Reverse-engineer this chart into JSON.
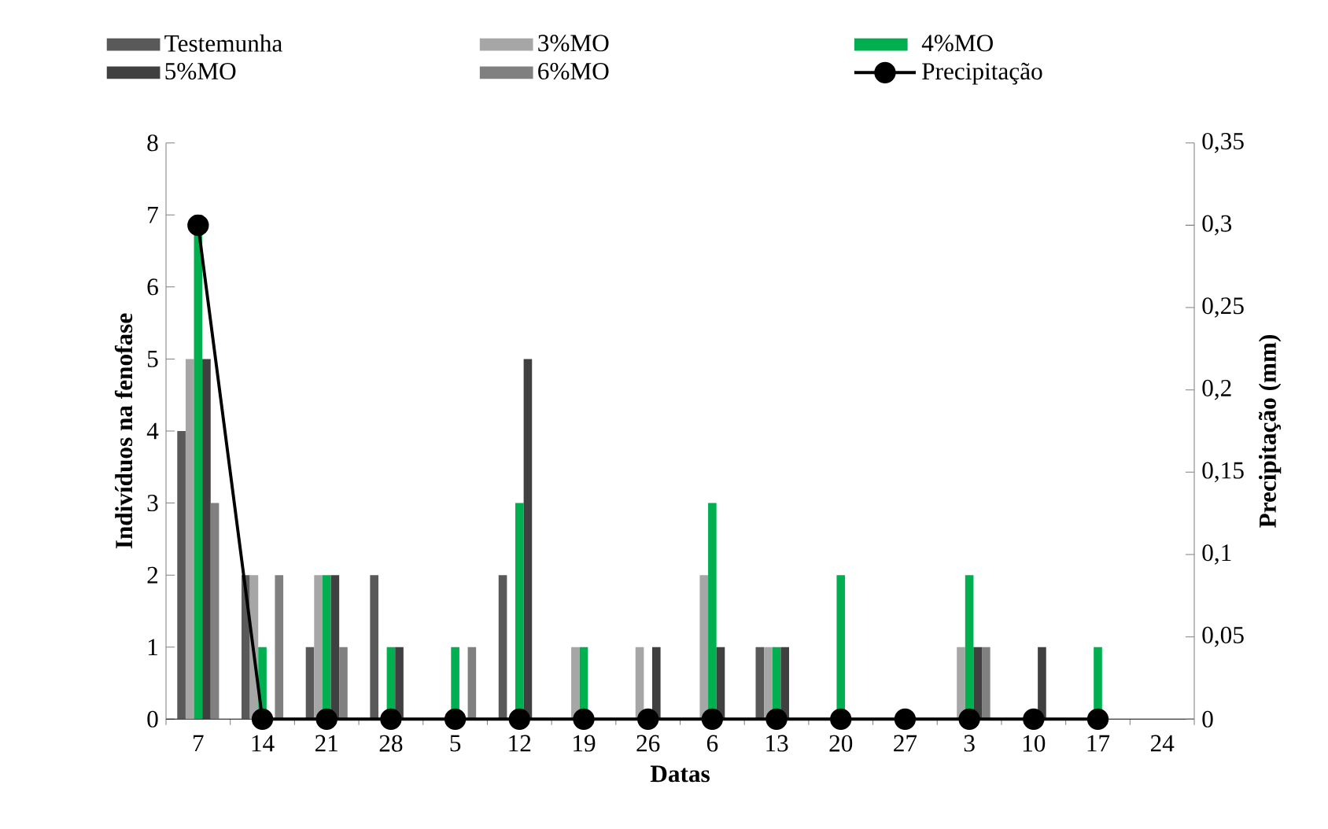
{
  "chart_data": {
    "type": "bar",
    "xlabel": "Datas",
    "ylabel": "Indivíduos na fenofase",
    "y2label": "Precipitação (mm)",
    "categories": [
      "7",
      "14",
      "21",
      "28",
      "5",
      "12",
      "19",
      "26",
      "6",
      "13",
      "20",
      "27",
      "3",
      "10",
      "17",
      "24"
    ],
    "series": [
      {
        "name": "Testemunha",
        "color": "#595959",
        "values": [
          4,
          2,
          1,
          2,
          0,
          2,
          0,
          0,
          0,
          1,
          0,
          0,
          0,
          0,
          0,
          0
        ]
      },
      {
        "name": "3%MO",
        "color": "#a6a6a6",
        "values": [
          5,
          2,
          2,
          0,
          0,
          0,
          1,
          1,
          2,
          1,
          0,
          0,
          1,
          0,
          0,
          0
        ]
      },
      {
        "name": "4%MO",
        "color": "#00b050",
        "values": [
          7,
          1,
          2,
          1,
          1,
          3,
          1,
          0,
          3,
          1,
          2,
          0,
          2,
          0,
          1,
          0
        ]
      },
      {
        "name": "5%MO",
        "color": "#404040",
        "values": [
          5,
          0,
          2,
          1,
          0,
          5,
          0,
          1,
          1,
          1,
          0,
          0,
          1,
          1,
          0,
          0
        ]
      },
      {
        "name": "6%MO",
        "color": "#808080",
        "values": [
          3,
          2,
          1,
          0,
          1,
          0,
          0,
          0,
          0,
          0,
          0,
          0,
          1,
          0,
          0,
          0
        ]
      },
      {
        "name": "Precipitação",
        "type": "line",
        "axis": "y2",
        "color": "#000000",
        "marker": "circle",
        "line_style": "solid",
        "values": [
          0.3,
          0,
          0,
          0,
          0,
          0,
          0,
          0,
          0,
          0,
          0,
          0,
          0,
          0,
          0,
          null
        ]
      }
    ],
    "ylim": [
      0,
      8
    ],
    "yticks": [
      0,
      1,
      2,
      3,
      4,
      5,
      6,
      7,
      8
    ],
    "y2lim": [
      0,
      0.35
    ],
    "y2ticks": [
      0,
      {
        "value": 0.05,
        "label": "0,05"
      },
      {
        "value": 0.1,
        "label": "0,1"
      },
      {
        "value": 0.15,
        "label": "0,15"
      },
      {
        "value": 0.2,
        "label": "0,2"
      },
      {
        "value": 0.25,
        "label": "0,25"
      },
      {
        "value": 0.3,
        "label": "0,3"
      },
      {
        "value": 0.35,
        "label": "0,35"
      }
    ],
    "grid": false,
    "legend": "top"
  }
}
